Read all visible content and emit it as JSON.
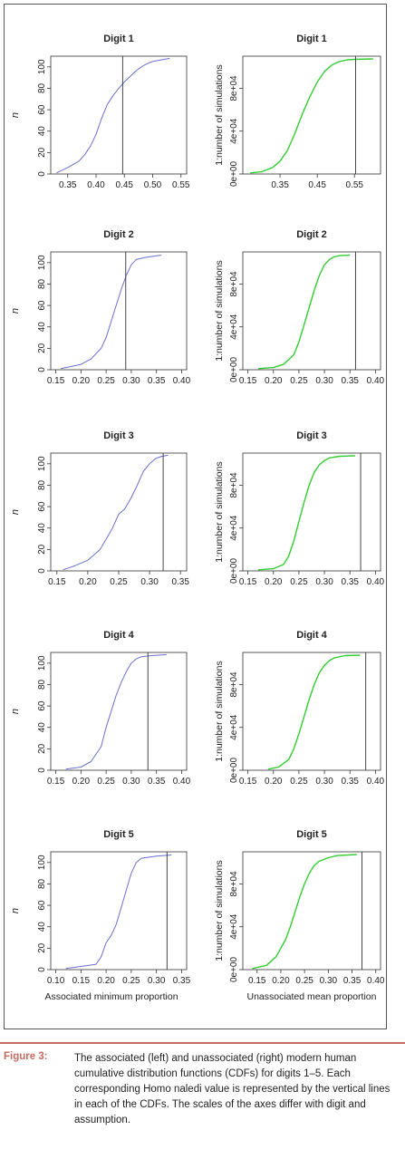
{
  "figure": {
    "axis_titles": {
      "left_y": "n",
      "right_y": "1:number of simulations",
      "left_x_bottom": "Associated minimum proportion",
      "right_x_bottom": "Unassociated mean proportion"
    }
  },
  "caption": {
    "label": "Figure 3:",
    "text": "The associated (left) and unassociated (right) modern human cumulative distribution functions (CDFs) for digits 1–5. Each corresponding Homo naledi value is represented by the vertical lines in each of the CDFs. The scales of the axes differ with digit and assumption."
  },
  "colors": {
    "left_line": "#6a6fd0",
    "right_line": "#33cc33",
    "vline": "#333333",
    "caption_label": "#c46b63"
  },
  "chart_data": [
    {
      "type": "line",
      "title": "Digit 1",
      "ylabel": "n",
      "xlabel": "",
      "xlim": [
        0.32,
        0.56
      ],
      "ylim": [
        0,
        110
      ],
      "xticks": [
        "0.35",
        "0.40",
        "0.45",
        "0.50",
        "0.55"
      ],
      "yticks": [
        "0",
        "20",
        "40",
        "60",
        "80",
        "100"
      ],
      "x": [
        0.33,
        0.35,
        0.37,
        0.38,
        0.39,
        0.4,
        0.41,
        0.42,
        0.43,
        0.44,
        0.45,
        0.46,
        0.47,
        0.48,
        0.49,
        0.5,
        0.52,
        0.53
      ],
      "y": [
        1,
        6,
        12,
        18,
        26,
        37,
        52,
        65,
        73,
        80,
        86,
        91,
        96,
        100,
        103,
        105,
        107,
        108
      ],
      "vline": 0.447
    },
    {
      "type": "line",
      "title": "Digit 1",
      "ylabel": "1:number of simulations",
      "xlabel": "",
      "xlim": [
        0.25,
        0.62
      ],
      "ylim": [
        0,
        110000
      ],
      "xticks": [
        "0.35",
        "0.45",
        "0.55"
      ],
      "yticks": [
        "0e+00",
        "4e+04",
        "8e+04"
      ],
      "x": [
        0.27,
        0.3,
        0.33,
        0.35,
        0.37,
        0.39,
        0.41,
        0.43,
        0.45,
        0.47,
        0.49,
        0.51,
        0.53,
        0.55,
        0.6
      ],
      "y": [
        1000,
        2000,
        6000,
        12000,
        22000,
        38000,
        56000,
        72000,
        86000,
        96000,
        102000,
        105000,
        106500,
        107000,
        107500
      ],
      "vline": 0.553
    },
    {
      "type": "line",
      "title": "Digit 2",
      "ylabel": "n",
      "xlabel": "",
      "xlim": [
        0.14,
        0.41
      ],
      "ylim": [
        0,
        110
      ],
      "xticks": [
        "0.15",
        "0.20",
        "0.25",
        "0.30",
        "0.35",
        "0.40"
      ],
      "yticks": [
        "0",
        "20",
        "40",
        "60",
        "80",
        "100"
      ],
      "x": [
        0.16,
        0.18,
        0.2,
        0.22,
        0.24,
        0.25,
        0.26,
        0.27,
        0.28,
        0.29,
        0.3,
        0.31,
        0.33,
        0.36
      ],
      "y": [
        1,
        3,
        5,
        10,
        20,
        30,
        45,
        60,
        75,
        88,
        98,
        103,
        105,
        107
      ],
      "vline": 0.289
    },
    {
      "type": "line",
      "title": "Digit 2",
      "ylabel": "1:number of simulations",
      "xlabel": "",
      "xlim": [
        0.14,
        0.41
      ],
      "ylim": [
        0,
        110000
      ],
      "xticks": [
        "0.15",
        "0.20",
        "0.25",
        "0.30",
        "0.35",
        "0.40"
      ],
      "yticks": [
        "0e+00",
        "4e+04",
        "8e+04"
      ],
      "x": [
        0.17,
        0.2,
        0.22,
        0.24,
        0.25,
        0.26,
        0.27,
        0.28,
        0.29,
        0.3,
        0.31,
        0.32,
        0.33,
        0.35
      ],
      "y": [
        1000,
        2000,
        5000,
        14000,
        26000,
        42000,
        58000,
        74000,
        88000,
        98000,
        103000,
        105500,
        106500,
        107000
      ],
      "vline": 0.361
    },
    {
      "type": "line",
      "title": "Digit 3",
      "ylabel": "n",
      "xlabel": "",
      "xlim": [
        0.14,
        0.36
      ],
      "ylim": [
        0,
        110
      ],
      "xticks": [
        "0.15",
        "0.20",
        "0.25",
        "0.30",
        "0.35"
      ],
      "yticks": [
        "0",
        "20",
        "40",
        "60",
        "80",
        "100"
      ],
      "x": [
        0.16,
        0.18,
        0.2,
        0.22,
        0.24,
        0.25,
        0.26,
        0.27,
        0.28,
        0.29,
        0.3,
        0.31,
        0.32,
        0.33
      ],
      "y": [
        1,
        5,
        10,
        20,
        40,
        53,
        58,
        68,
        80,
        93,
        100,
        105,
        107,
        108
      ],
      "vline": 0.322
    },
    {
      "type": "line",
      "title": "Digit 3",
      "ylabel": "1:number of simulations",
      "xlabel": "",
      "xlim": [
        0.14,
        0.41
      ],
      "ylim": [
        0,
        110000
      ],
      "xticks": [
        "0.15",
        "0.20",
        "0.25",
        "0.30",
        "0.35",
        "0.40"
      ],
      "yticks": [
        "0e+00",
        "4e+04",
        "8e+04"
      ],
      "x": [
        0.17,
        0.2,
        0.22,
        0.23,
        0.24,
        0.25,
        0.26,
        0.27,
        0.28,
        0.29,
        0.3,
        0.31,
        0.33,
        0.36
      ],
      "y": [
        1000,
        2000,
        6000,
        14000,
        28000,
        46000,
        64000,
        80000,
        92000,
        99000,
        103000,
        105500,
        107000,
        107500
      ],
      "vline": 0.371
    },
    {
      "type": "line",
      "title": "Digit 4",
      "ylabel": "n",
      "xlabel": "",
      "xlim": [
        0.14,
        0.41
      ],
      "ylim": [
        0,
        110
      ],
      "xticks": [
        "0.15",
        "0.20",
        "0.25",
        "0.30",
        "0.35",
        "0.40"
      ],
      "yticks": [
        "0",
        "20",
        "40",
        "60",
        "80",
        "100"
      ],
      "x": [
        0.17,
        0.2,
        0.22,
        0.24,
        0.25,
        0.26,
        0.27,
        0.28,
        0.29,
        0.3,
        0.31,
        0.32,
        0.34,
        0.37
      ],
      "y": [
        1,
        3,
        8,
        22,
        40,
        55,
        70,
        82,
        92,
        100,
        104,
        106,
        107,
        108
      ],
      "vline": 0.333
    },
    {
      "type": "line",
      "title": "Digit 4",
      "ylabel": "1:number of simulations",
      "xlabel": "",
      "xlim": [
        0.14,
        0.41
      ],
      "ylim": [
        0,
        110000
      ],
      "xticks": [
        "0.15",
        "0.20",
        "0.25",
        "0.30",
        "0.35",
        "0.40"
      ],
      "yticks": [
        "0e+00",
        "4e+04",
        "8e+04"
      ],
      "x": [
        0.19,
        0.21,
        0.23,
        0.24,
        0.25,
        0.26,
        0.27,
        0.28,
        0.29,
        0.3,
        0.31,
        0.32,
        0.34,
        0.37
      ],
      "y": [
        1000,
        3000,
        10000,
        20000,
        34000,
        50000,
        66000,
        80000,
        91000,
        98000,
        102500,
        105000,
        107000,
        107500
      ],
      "vline": 0.381
    },
    {
      "type": "line",
      "title": "Digit 5",
      "ylabel": "n",
      "xlabel": "Associated minimum proportion",
      "xlim": [
        0.09,
        0.36
      ],
      "ylim": [
        0,
        110
      ],
      "xticks": [
        "0.10",
        "0.15",
        "0.20",
        "0.25",
        "0.30",
        "0.35"
      ],
      "yticks": [
        "0",
        "20",
        "40",
        "60",
        "80",
        "100"
      ],
      "x": [
        0.12,
        0.15,
        0.18,
        0.19,
        0.2,
        0.21,
        0.22,
        0.23,
        0.24,
        0.25,
        0.26,
        0.27,
        0.3,
        0.33
      ],
      "y": [
        1,
        3,
        5,
        12,
        25,
        32,
        42,
        58,
        74,
        90,
        100,
        104,
        106,
        107
      ],
      "vline": 0.321
    },
    {
      "type": "line",
      "title": "Digit 5",
      "ylabel": "1:number of simulations",
      "xlabel": "Unassociated mean proportion",
      "xlim": [
        0.12,
        0.41
      ],
      "ylim": [
        0,
        110000
      ],
      "xticks": [
        "0.15",
        "0.20",
        "0.25",
        "0.30",
        "0.35",
        "0.40"
      ],
      "yticks": [
        "0e+00",
        "4e+04",
        "8e+04"
      ],
      "x": [
        0.14,
        0.17,
        0.19,
        0.21,
        0.22,
        0.23,
        0.24,
        0.25,
        0.26,
        0.27,
        0.28,
        0.3,
        0.32,
        0.36
      ],
      "y": [
        1000,
        4000,
        12000,
        28000,
        40000,
        54000,
        68000,
        80000,
        90000,
        97000,
        101000,
        104500,
        106500,
        107500
      ],
      "vline": 0.371
    }
  ]
}
